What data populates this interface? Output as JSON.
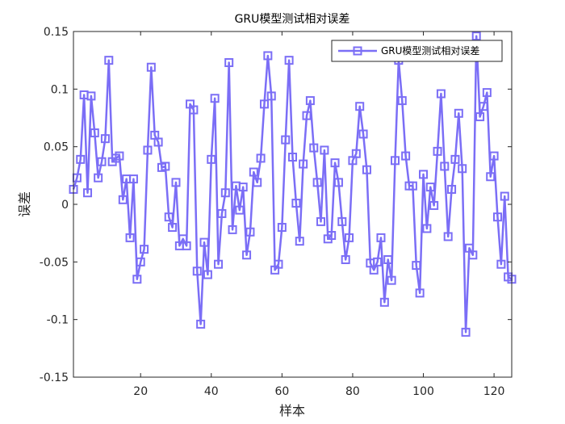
{
  "chart_data": {
    "type": "line",
    "title": "GRU模型测试相对误差",
    "xlabel": "样本",
    "ylabel": "误差",
    "xlim": [
      1,
      125
    ],
    "ylim": [
      -0.15,
      0.15
    ],
    "xticks": [
      20,
      40,
      60,
      80,
      100,
      120
    ],
    "yticks": [
      -0.15,
      -0.1,
      -0.05,
      0,
      0.05,
      0.1,
      0.15
    ],
    "xtick_labels": [
      "20",
      "40",
      "60",
      "80",
      "100",
      "120"
    ],
    "ytick_labels": [
      "-0.15",
      "-0.1",
      "-0.05",
      "0",
      "0.05",
      "0.1",
      "0.15"
    ],
    "grid": false,
    "legend_position": "top-right",
    "marker": "square",
    "line_color": "#7b6ef6",
    "series": [
      {
        "name": "GRU模型测试相对误差",
        "x": [
          1,
          2,
          3,
          4,
          5,
          6,
          7,
          8,
          9,
          10,
          11,
          12,
          13,
          14,
          15,
          16,
          17,
          18,
          19,
          20,
          21,
          22,
          23,
          24,
          25,
          26,
          27,
          28,
          29,
          30,
          31,
          32,
          33,
          34,
          35,
          36,
          37,
          38,
          39,
          40,
          41,
          42,
          43,
          44,
          45,
          46,
          47,
          48,
          49,
          50,
          51,
          52,
          53,
          54,
          55,
          56,
          57,
          58,
          59,
          60,
          61,
          62,
          63,
          64,
          65,
          66,
          67,
          68,
          69,
          70,
          71,
          72,
          73,
          74,
          75,
          76,
          77,
          78,
          79,
          80,
          81,
          82,
          83,
          84,
          85,
          86,
          87,
          88,
          89,
          90,
          91,
          92,
          93,
          94,
          95,
          96,
          97,
          98,
          99,
          100,
          101,
          102,
          103,
          104,
          105,
          106,
          107,
          108,
          109,
          110,
          111,
          112,
          113,
          114,
          115,
          116,
          117,
          118,
          119,
          120,
          121,
          122,
          123,
          124,
          125
        ],
        "y": [
          0.013,
          0.023,
          0.039,
          0.095,
          0.01,
          0.094,
          0.062,
          0.023,
          0.037,
          0.057,
          0.125,
          0.037,
          0.04,
          0.042,
          0.004,
          0.022,
          -0.029,
          0.022,
          -0.065,
          -0.05,
          -0.039,
          0.047,
          0.119,
          0.06,
          0.054,
          0.032,
          0.033,
          -0.011,
          -0.02,
          0.019,
          -0.036,
          -0.03,
          -0.036,
          0.087,
          0.082,
          -0.058,
          -0.104,
          -0.033,
          -0.061,
          0.039,
          0.092,
          -0.052,
          -0.008,
          0.01,
          0.123,
          -0.022,
          0.016,
          -0.005,
          0.015,
          -0.044,
          -0.024,
          0.028,
          0.019,
          0.04,
          0.087,
          0.129,
          0.094,
          -0.057,
          -0.052,
          -0.02,
          0.056,
          0.125,
          0.041,
          0.001,
          -0.032,
          0.035,
          0.077,
          0.09,
          0.049,
          0.019,
          -0.015,
          0.047,
          -0.03,
          -0.027,
          0.036,
          0.019,
          -0.015,
          -0.048,
          -0.029,
          0.038,
          0.044,
          0.085,
          0.061,
          0.03,
          -0.051,
          -0.057,
          -0.05,
          -0.029,
          -0.085,
          -0.048,
          -0.066,
          0.038,
          0.125,
          0.09,
          0.042,
          0.016,
          0.016,
          -0.053,
          -0.077,
          0.026,
          -0.021,
          0.015,
          -0.001,
          0.046,
          0.096,
          0.033,
          -0.028,
          0.013,
          0.039,
          0.079,
          0.031,
          -0.111,
          -0.038,
          -0.044,
          0.146,
          0.076,
          0.085,
          0.097,
          0.024,
          0.042,
          -0.011,
          -0.052,
          0.007,
          -0.063,
          -0.065
        ]
      }
    ]
  }
}
